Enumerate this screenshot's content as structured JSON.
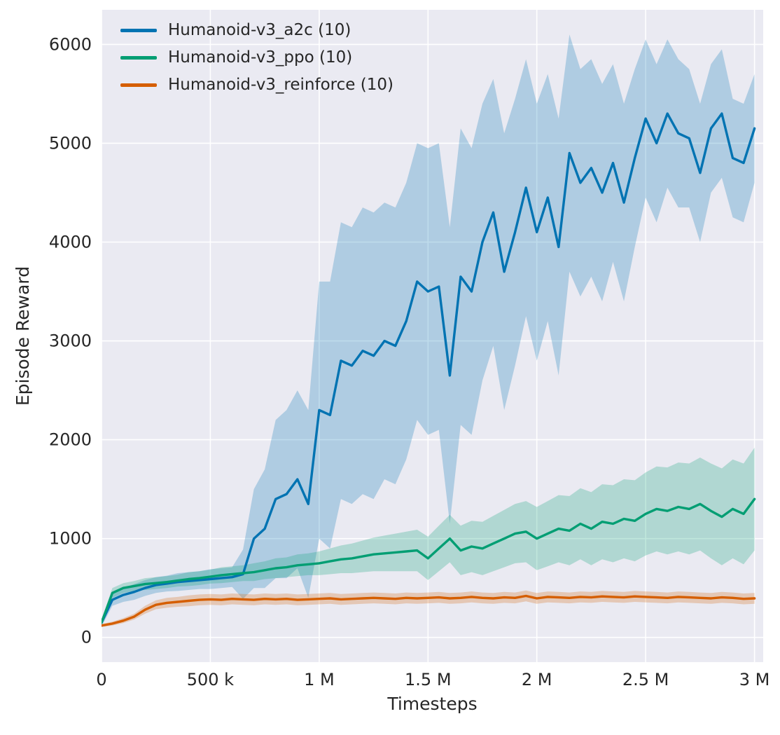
{
  "chart_data": {
    "type": "line",
    "title": "",
    "xlabel": "Timesteps",
    "ylabel": "Episode Reward",
    "x_unit": "millions of timesteps",
    "xlim": [
      0,
      3.04
    ],
    "ylim": [
      -250,
      6350
    ],
    "grid": true,
    "background": "#eaeaf2",
    "grid_color": "#ffffff",
    "text_color": "#262626",
    "legend_position": "upper-left",
    "x_ticks": {
      "values": [
        0,
        0.5,
        1,
        1.5,
        2,
        2.5,
        3
      ],
      "labels": [
        "0",
        "500 k",
        "1 M",
        "1.5 M",
        "2 M",
        "2.5 M",
        "3 M"
      ]
    },
    "y_ticks": {
      "values": [
        0,
        1000,
        2000,
        3000,
        4000,
        5000,
        6000
      ],
      "labels": [
        "0",
        "1000",
        "2000",
        "3000",
        "4000",
        "5000",
        "6000"
      ]
    },
    "x": [
      0,
      0.05,
      0.1,
      0.15,
      0.2,
      0.25,
      0.3,
      0.35,
      0.4,
      0.45,
      0.5,
      0.55,
      0.6,
      0.65,
      0.7,
      0.75,
      0.8,
      0.85,
      0.9,
      0.95,
      1,
      1.05,
      1.1,
      1.15,
      1.2,
      1.25,
      1.3,
      1.35,
      1.4,
      1.45,
      1.5,
      1.55,
      1.6,
      1.65,
      1.7,
      1.75,
      1.8,
      1.85,
      1.9,
      1.95,
      2,
      2.05,
      2.1,
      2.15,
      2.2,
      2.25,
      2.3,
      2.35,
      2.4,
      2.45,
      2.5,
      2.55,
      2.6,
      2.65,
      2.7,
      2.75,
      2.8,
      2.85,
      2.9,
      2.95,
      3
    ],
    "series": [
      {
        "name": "Humanoid-v3_a2c (10)",
        "color": "#0173b2",
        "band_opacity": 0.25,
        "mean": [
          150,
          380,
          430,
          460,
          500,
          530,
          545,
          560,
          570,
          580,
          590,
          600,
          610,
          640,
          1000,
          1100,
          1400,
          1450,
          1600,
          1350,
          2300,
          2250,
          2800,
          2750,
          2900,
          2850,
          3000,
          2950,
          3200,
          3600,
          3500,
          3550,
          2650,
          3650,
          3500,
          4000,
          4300,
          3700,
          4100,
          4550,
          4100,
          4450,
          3950,
          4900,
          4600,
          4750,
          4500,
          4800,
          4400,
          4850,
          5250,
          5000,
          5300,
          5100,
          5050,
          4700,
          5150,
          5300,
          4850,
          4800,
          5150
        ],
        "spread": [
          40,
          60,
          70,
          80,
          80,
          80,
          80,
          90,
          90,
          90,
          100,
          100,
          100,
          250,
          500,
          600,
          800,
          850,
          900,
          950,
          1300,
          1350,
          1400,
          1400,
          1450,
          1450,
          1400,
          1400,
          1400,
          1400,
          1450,
          1450,
          1500,
          1500,
          1450,
          1400,
          1350,
          1400,
          1350,
          1300,
          1300,
          1250,
          1300,
          1200,
          1150,
          1100,
          1100,
          1000,
          1000,
          900,
          800,
          800,
          750,
          750,
          700,
          700,
          650,
          650,
          600,
          600,
          550
        ]
      },
      {
        "name": "Humanoid-v3_ppo (10)",
        "color": "#029e73",
        "band_opacity": 0.25,
        "mean": [
          150,
          450,
          500,
          520,
          540,
          550,
          560,
          575,
          590,
          600,
          615,
          630,
          640,
          650,
          660,
          680,
          700,
          710,
          730,
          740,
          750,
          770,
          790,
          800,
          820,
          840,
          850,
          860,
          870,
          880,
          800,
          900,
          1000,
          880,
          920,
          900,
          950,
          1000,
          1050,
          1070,
          1000,
          1050,
          1100,
          1080,
          1150,
          1100,
          1170,
          1150,
          1200,
          1180,
          1250,
          1300,
          1280,
          1320,
          1300,
          1350,
          1280,
          1220,
          1300,
          1250,
          1400
        ],
        "spread": [
          30,
          50,
          50,
          50,
          60,
          60,
          60,
          60,
          70,
          70,
          70,
          80,
          80,
          80,
          90,
          90,
          100,
          100,
          110,
          110,
          120,
          130,
          140,
          150,
          160,
          170,
          180,
          190,
          200,
          210,
          220,
          230,
          240,
          250,
          260,
          270,
          280,
          290,
          300,
          310,
          320,
          330,
          340,
          350,
          360,
          370,
          380,
          390,
          400,
          410,
          420,
          430,
          440,
          450,
          460,
          470,
          480,
          490,
          500,
          510,
          520
        ]
      },
      {
        "name": "Humanoid-v3_reinforce (10)",
        "color": "#d55e00",
        "band_opacity": 0.25,
        "mean": [
          120,
          140,
          170,
          210,
          280,
          330,
          350,
          360,
          370,
          380,
          385,
          380,
          390,
          385,
          380,
          390,
          385,
          390,
          380,
          385,
          390,
          395,
          385,
          390,
          395,
          400,
          395,
          390,
          400,
          395,
          400,
          405,
          395,
          400,
          410,
          400,
          395,
          405,
          400,
          420,
          395,
          410,
          405,
          400,
          410,
          405,
          415,
          410,
          405,
          415,
          410,
          405,
          400,
          410,
          405,
          400,
          395,
          405,
          400,
          390,
          395
        ],
        "spread": [
          15,
          20,
          25,
          30,
          40,
          45,
          50,
          50,
          55,
          55,
          55,
          55,
          55,
          55,
          55,
          55,
          55,
          55,
          55,
          55,
          55,
          55,
          55,
          55,
          55,
          55,
          55,
          55,
          55,
          55,
          55,
          55,
          55,
          55,
          55,
          55,
          55,
          55,
          55,
          55,
          55,
          55,
          55,
          55,
          55,
          55,
          55,
          55,
          55,
          55,
          55,
          55,
          55,
          55,
          55,
          55,
          55,
          55,
          55,
          55,
          55
        ]
      }
    ]
  }
}
